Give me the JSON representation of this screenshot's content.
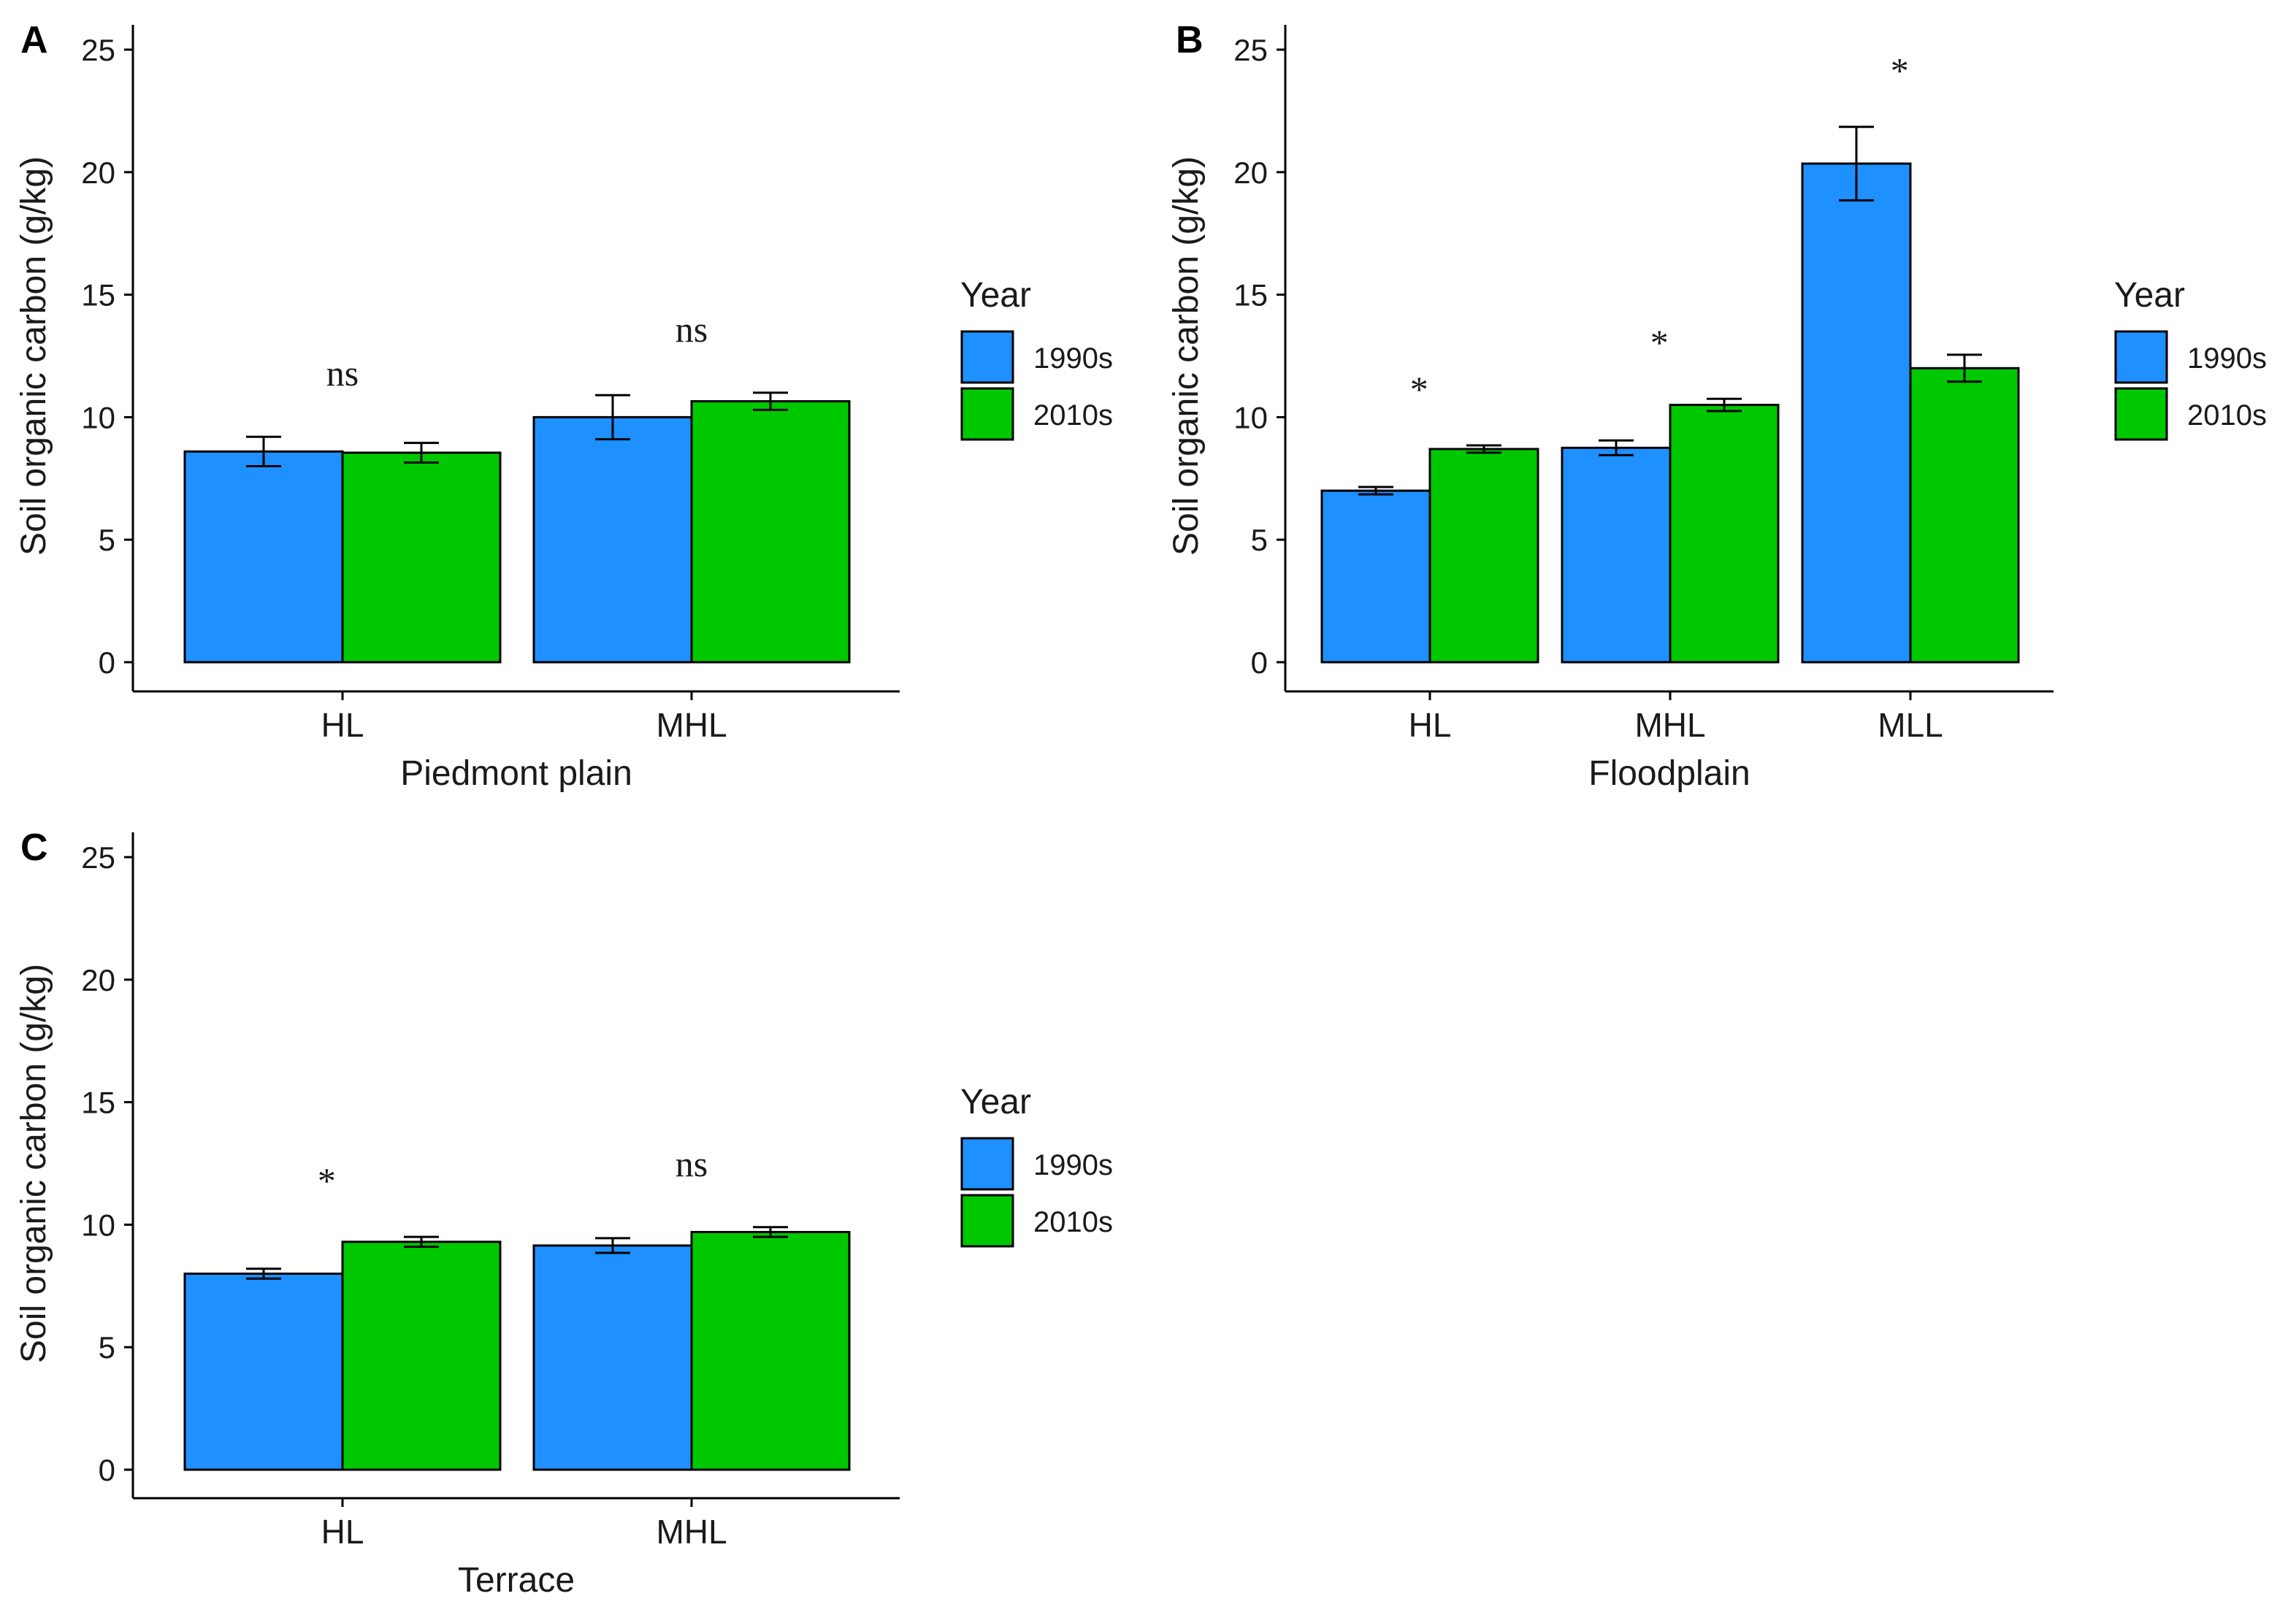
{
  "chart_data": [
    {
      "type": "bar",
      "panel": "A",
      "title": "",
      "xlabel": "Piedmont plain",
      "ylabel": "Soil organic carbon (g/kg)",
      "ylim": [
        0,
        25
      ],
      "yticks": [
        "0",
        "5",
        "10",
        "15",
        "20",
        "25"
      ],
      "categories": [
        "HL",
        "MHL"
      ],
      "series": [
        {
          "name": "1990s",
          "color": "#1e90ff",
          "values": [
            8.6,
            10.0
          ],
          "errors": [
            0.6,
            0.9
          ]
        },
        {
          "name": "2010s",
          "color": "#00c800",
          "values": [
            8.55,
            10.65
          ],
          "errors": [
            0.4,
            0.35
          ]
        }
      ],
      "significance": [
        "ns",
        "ns"
      ],
      "legend": {
        "title": "Year",
        "position": "right"
      }
    },
    {
      "type": "bar",
      "panel": "B",
      "title": "",
      "xlabel": "Floodplain",
      "ylabel": "Soil organic carbon (g/kg)",
      "ylim": [
        0,
        25
      ],
      "yticks": [
        "0",
        "5",
        "10",
        "15",
        "20",
        "25"
      ],
      "categories": [
        "HL",
        "MHL",
        "MLL"
      ],
      "series": [
        {
          "name": "1990s",
          "color": "#1e90ff",
          "values": [
            7.0,
            8.75,
            20.35
          ],
          "errors": [
            0.15,
            0.3,
            1.5
          ]
        },
        {
          "name": "2010s",
          "color": "#00c800",
          "values": [
            8.7,
            10.5,
            12.0
          ],
          "errors": [
            0.15,
            0.25,
            0.55
          ]
        }
      ],
      "significance": [
        "*",
        "*",
        "*"
      ],
      "legend": {
        "title": "Year",
        "position": "right"
      }
    },
    {
      "type": "bar",
      "panel": "C",
      "title": "",
      "xlabel": "Terrace",
      "ylabel": "Soil organic carbon (g/kg)",
      "ylim": [
        0,
        25
      ],
      "yticks": [
        "0",
        "5",
        "10",
        "15",
        "20",
        "25"
      ],
      "categories": [
        "HL",
        "MHL"
      ],
      "series": [
        {
          "name": "1990s",
          "color": "#1e90ff",
          "values": [
            8.0,
            9.15
          ],
          "errors": [
            0.2,
            0.3
          ]
        },
        {
          "name": "2010s",
          "color": "#00c800",
          "values": [
            9.3,
            9.7
          ],
          "errors": [
            0.2,
            0.2
          ]
        }
      ],
      "significance": [
        "*",
        "ns"
      ],
      "legend": {
        "title": "Year",
        "position": "right"
      }
    }
  ]
}
